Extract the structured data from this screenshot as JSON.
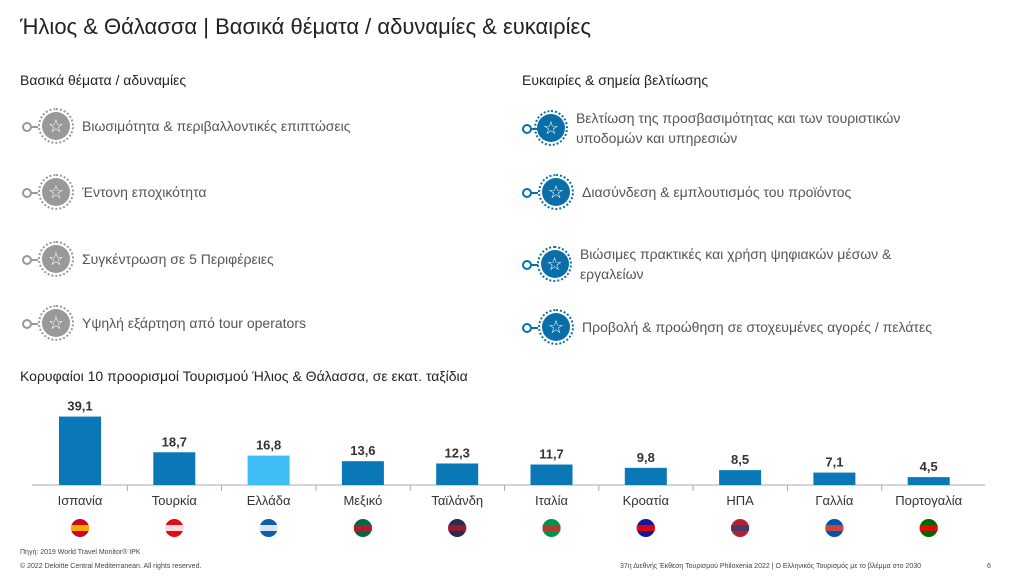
{
  "title": "Ήλιος & Θάλασσα | Βασικά θέματα / αδυναμίες & ευκαιρίες",
  "left": {
    "heading": "Βασικά θέματα / αδυναμίες",
    "items": [
      "Βιωσιμότητα & περιβαλλοντικές επιπτώσεις",
      "Έντονη εποχικότητα",
      "Συγκέντρωση σε 5 Περιφέρειες",
      "Υψηλή εξάρτηση από tour operators"
    ]
  },
  "right": {
    "heading": "Ευκαιρίες & σημεία βελτίωσης",
    "items": [
      "Βελτίωση της προσβασιμότητας και των τουριστικών υποδομών και υπηρεσιών",
      "Διασύνδεση & εμπλουτισμός του προϊόντος",
      "Βιώσιμες πρακτικές και χρήση ψηφιακών μέσων & εργαλείων",
      "Προβολή & προώθηση σε στοχευμένες αγορές / πελάτες"
    ]
  },
  "icons": {
    "left": "star-gray-icon",
    "right": "star-blue-icon"
  },
  "chart_data": {
    "type": "bar",
    "title": "Κορυφαίοι 10 προορισμοί Τουρισμού Ήλιος & Θάλασσα, σε εκατ. ταξίδια",
    "categories": [
      "Ισπανία",
      "Τουρκία",
      "Ελλάδα",
      "Μεξικό",
      "Ταϊλάνδη",
      "Ιταλία",
      "Κροατία",
      "ΗΠΑ",
      "Γαλλία",
      "Πορτογαλία"
    ],
    "values": [
      39.1,
      18.7,
      16.8,
      13.6,
      12.3,
      11.7,
      9.8,
      8.5,
      7.1,
      4.5
    ],
    "data_labels": [
      "39,1",
      "18,7",
      "16,8",
      "13,6",
      "12,3",
      "11,7",
      "9,8",
      "8,5",
      "7,1",
      "4,5"
    ],
    "flags": [
      "spain-flag",
      "turkey-flag",
      "greece-flag",
      "mexico-flag",
      "thailand-flag",
      "italy-flag",
      "croatia-flag",
      "usa-flag",
      "france-flag",
      "portugal-flag"
    ],
    "colors": {
      "default": "#0a77b6",
      "highlight": "#3fbdf5"
    },
    "highlight": "Ελλάδα",
    "ylim": [
      0,
      40
    ]
  },
  "footer": {
    "source": "Πηγή: 2019 World Travel Monitor® IPK",
    "copyright": "© 2022 Deloitte Central Mediterranean. All rights reserved.",
    "event": "37η Διεθνής Έκθεση Τουρισμού Philoxenia 2022 | Ο Ελληνικός Τουρισμός με το βλέμμα στο 2030",
    "page": "6"
  }
}
